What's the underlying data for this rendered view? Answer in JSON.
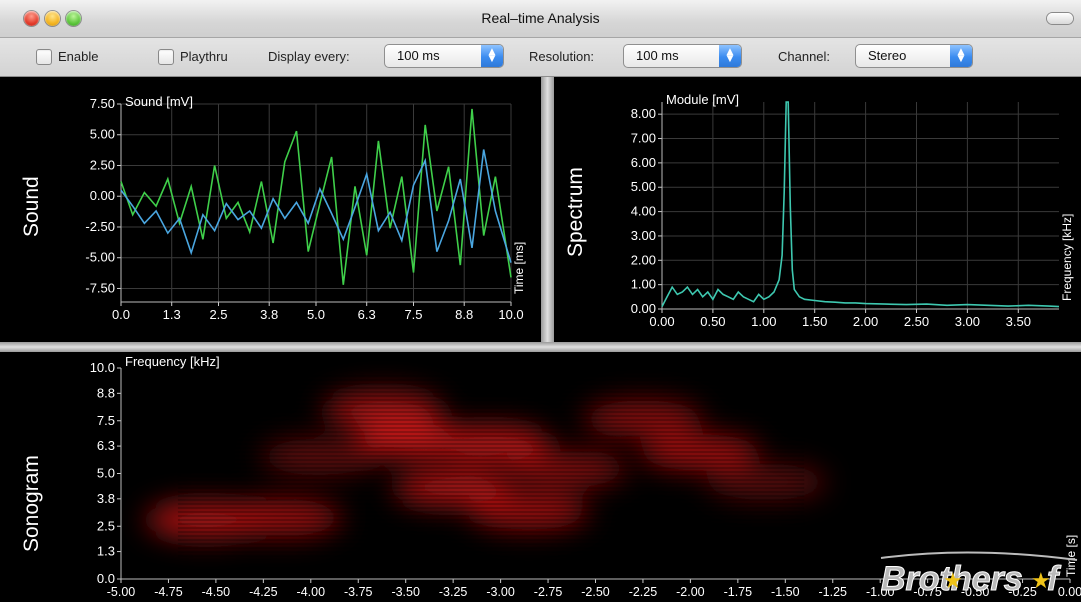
{
  "window": {
    "title": "Real–time Analysis"
  },
  "toolbar": {
    "enable_label": "Enable",
    "enable_checked": false,
    "playthru_label": "Playthru",
    "playthru_checked": false,
    "display_every_label": "Display every:",
    "display_every_value": "100 ms",
    "resolution_label": "Resolution:",
    "resolution_value": "100 ms",
    "channel_label": "Channel:",
    "channel_value": "Stereo"
  },
  "panes": {
    "sound": {
      "side_label": "Sound"
    },
    "spectrum": {
      "side_label": "Spectrum"
    },
    "sonogram": {
      "side_label": "Sonogram"
    }
  },
  "watermark": {
    "text": "Brothers",
    "tail": "f",
    "star_color": "#f0c419"
  },
  "colors": {
    "series_green": "#3fcf4a",
    "series_blue": "#4aa6e0",
    "spectrum_line": "#3ec8b0",
    "sonogram": "#c01414",
    "grid": "#3a3a3a"
  },
  "chart_data": [
    {
      "type": "line",
      "ylabel": "Sound [mV]",
      "xlabel": "Time [ms]",
      "x_ticks": [
        "0.0",
        "1.3",
        "2.5",
        "3.8",
        "5.0",
        "6.3",
        "7.5",
        "8.8",
        "10.0"
      ],
      "y_ticks": [
        "7.50",
        "5.00",
        "2.50",
        "0.00",
        "-2.50",
        "-5.00",
        "-7.50"
      ],
      "xlim": [
        0,
        10
      ],
      "ylim": [
        -8.6,
        7.5
      ],
      "grid": true,
      "series": [
        {
          "color": "#3fcf4a",
          "x": [
            0,
            0.3,
            0.6,
            0.9,
            1.2,
            1.5,
            1.8,
            2.1,
            2.4,
            2.7,
            3.0,
            3.3,
            3.6,
            3.9,
            4.2,
            4.5,
            4.8,
            5.1,
            5.4,
            5.7,
            6.0,
            6.3,
            6.6,
            6.9,
            7.2,
            7.5,
            7.8,
            8.1,
            8.4,
            8.7,
            9.0,
            9.3,
            9.6,
            10.0
          ],
          "y": [
            1.2,
            -1.5,
            0.3,
            -0.8,
            1.4,
            -2.2,
            0.8,
            -3.5,
            2.5,
            -1.8,
            -0.5,
            -2.9,
            1.2,
            -3.8,
            2.8,
            5.3,
            -4.5,
            -0.6,
            3.2,
            -7.2,
            0.8,
            -4.8,
            4.5,
            -2.6,
            1.6,
            -6.2,
            5.8,
            -1.2,
            2.4,
            -5.6,
            7.1,
            -3.2,
            1.6,
            -6.6
          ]
        },
        {
          "color": "#4aa6e0",
          "x": [
            0,
            0.3,
            0.6,
            0.9,
            1.2,
            1.5,
            1.8,
            2.1,
            2.4,
            2.7,
            3.0,
            3.3,
            3.6,
            3.9,
            4.2,
            4.5,
            4.8,
            5.1,
            5.4,
            5.7,
            6.0,
            6.3,
            6.6,
            6.9,
            7.2,
            7.5,
            7.8,
            8.1,
            8.4,
            8.7,
            9.0,
            9.3,
            9.6,
            10.0
          ],
          "y": [
            0.5,
            -0.8,
            -2.2,
            -1.2,
            -3.0,
            -1.8,
            -4.6,
            -1.5,
            -2.8,
            -0.6,
            -1.9,
            -1.2,
            -2.6,
            -0.2,
            -1.8,
            -0.5,
            -2.2,
            0.6,
            -1.4,
            -3.5,
            -0.9,
            1.8,
            -2.8,
            -1.3,
            -3.6,
            0.9,
            2.9,
            -4.5,
            -2.0,
            1.4,
            -4.2,
            3.8,
            -1.2,
            -5.4
          ]
        }
      ]
    },
    {
      "type": "line",
      "ylabel": "Module [mV]",
      "xlabel": "Frequency [kHz]",
      "x_ticks": [
        "0.00",
        "0.50",
        "1.00",
        "1.50",
        "2.00",
        "2.50",
        "3.00",
        "3.50"
      ],
      "y_ticks": [
        "8.00",
        "7.00",
        "6.00",
        "5.00",
        "4.00",
        "3.00",
        "2.00",
        "1.00",
        "0.00"
      ],
      "xlim": [
        0,
        3.9
      ],
      "ylim": [
        0,
        8.5
      ],
      "grid": true,
      "series": [
        {
          "color": "#3ec8b0",
          "x": [
            0.0,
            0.05,
            0.1,
            0.15,
            0.2,
            0.25,
            0.3,
            0.35,
            0.4,
            0.45,
            0.5,
            0.55,
            0.6,
            0.65,
            0.7,
            0.75,
            0.8,
            0.85,
            0.9,
            0.95,
            1.0,
            1.05,
            1.1,
            1.15,
            1.18,
            1.2,
            1.22,
            1.24,
            1.26,
            1.28,
            1.3,
            1.35,
            1.4,
            1.5,
            1.6,
            1.7,
            1.8,
            1.9,
            2.0,
            2.2,
            2.4,
            2.6,
            2.8,
            3.0,
            3.2,
            3.4,
            3.6,
            3.8,
            3.9
          ],
          "y": [
            0.1,
            0.5,
            0.9,
            0.6,
            0.7,
            0.9,
            0.6,
            0.8,
            0.5,
            0.7,
            0.4,
            0.8,
            0.6,
            0.5,
            0.4,
            0.7,
            0.5,
            0.4,
            0.3,
            0.6,
            0.4,
            0.5,
            0.7,
            1.2,
            2.2,
            4.8,
            8.6,
            8.6,
            4.2,
            1.6,
            0.8,
            0.5,
            0.4,
            0.35,
            0.3,
            0.28,
            0.25,
            0.25,
            0.22,
            0.2,
            0.18,
            0.2,
            0.15,
            0.18,
            0.15,
            0.12,
            0.15,
            0.12,
            0.1
          ]
        }
      ]
    },
    {
      "type": "heatmap",
      "ylabel": "Frequency [kHz]",
      "xlabel": "Time [s]",
      "x_ticks": [
        "-5.00",
        "-4.75",
        "-4.50",
        "-4.25",
        "-4.00",
        "-3.75",
        "-3.50",
        "-3.25",
        "-3.00",
        "-2.75",
        "-2.50",
        "-2.25",
        "-2.00",
        "-1.75",
        "-1.50",
        "-1.25",
        "-1.00",
        "-0.75",
        "-0.50",
        "-0.25",
        "0.00"
      ],
      "y_ticks": [
        "10.0",
        "8.8",
        "7.5",
        "6.3",
        "5.0",
        "3.8",
        "2.5",
        "1.3",
        "0.0"
      ],
      "xlim": [
        -5,
        0
      ],
      "ylim": [
        0,
        10
      ],
      "blobs": [
        {
          "t": -4.55,
          "f": 2.8,
          "intensity": 0.9
        },
        {
          "t": -4.15,
          "f": 2.9,
          "intensity": 0.8
        },
        {
          "t": -3.95,
          "f": 5.8,
          "intensity": 0.5
        },
        {
          "t": -3.62,
          "f": 8.0,
          "intensity": 0.85
        },
        {
          "t": -3.45,
          "f": 6.6,
          "intensity": 1.0
        },
        {
          "t": -3.25,
          "f": 4.3,
          "intensity": 0.9
        },
        {
          "t": -3.05,
          "f": 6.4,
          "intensity": 0.95
        },
        {
          "t": -2.85,
          "f": 3.2,
          "intensity": 0.8
        },
        {
          "t": -2.65,
          "f": 5.2,
          "intensity": 0.65
        },
        {
          "t": -2.25,
          "f": 7.6,
          "intensity": 0.7
        },
        {
          "t": -1.95,
          "f": 6.0,
          "intensity": 0.8
        },
        {
          "t": -1.6,
          "f": 4.6,
          "intensity": 0.45
        }
      ]
    }
  ]
}
